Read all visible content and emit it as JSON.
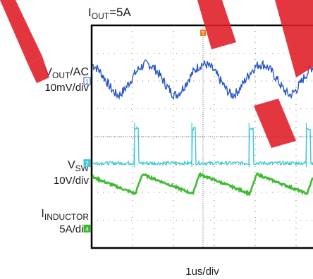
{
  "title": {
    "prefix": "I",
    "sub": "OUT",
    "suffix": "=5A"
  },
  "channels": [
    {
      "name_main": "V",
      "name_sub": "OUT",
      "name_tail": "/AC",
      "scale": "10mV/div",
      "marker": "1",
      "color": "#2a58c8"
    },
    {
      "name_main": "V",
      "name_sub": "SW",
      "name_tail": "",
      "scale": "10V/div",
      "marker": "2",
      "color": "#40c8d8"
    },
    {
      "name_main": "I",
      "name_sub": "INDUCTOR",
      "name_tail": "",
      "scale": "5A/div",
      "marker": "4",
      "color": "#3dbb2f"
    }
  ],
  "trigger_marker": "T",
  "trigger_color": "#f08020",
  "x_scale": "1us/div",
  "chart_data": {
    "type": "line",
    "title": "",
    "xlabel": "1us/div",
    "ylabel": "",
    "grid": true,
    "grid_divisions": {
      "x": 10,
      "y": 8
    },
    "xlim": [
      0,
      10
    ],
    "ylim": [
      -4,
      4
    ],
    "units": {
      "x": "us"
    },
    "switching_period_us": 1.4,
    "series": [
      {
        "name": "VOUT/AC",
        "scale": "10mV/div",
        "offset_div": 2.0,
        "shape": "periodic_ripple",
        "period_us": 1.4,
        "peak_to_peak_div": 1.1
      },
      {
        "name": "VSW",
        "scale": "10V/div",
        "offset_div": -0.95,
        "shape": "pulse_train",
        "period_us": 1.4,
        "high_div": 1.25,
        "pulse_width_us": 0.1
      },
      {
        "name": "IINDUCTOR",
        "scale": "5A/div",
        "offset_div": -1.7,
        "shape": "sawtooth",
        "period_us": 1.4,
        "peak_to_peak_div": 0.35
      }
    ]
  }
}
